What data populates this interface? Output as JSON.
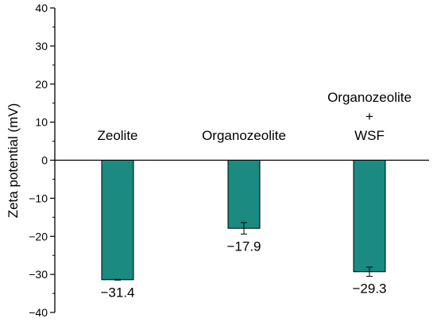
{
  "chart_data": {
    "type": "bar",
    "title": "",
    "xlabel": "",
    "ylabel": "Zeta potential (mV)",
    "ylim": [
      -40,
      40
    ],
    "yticks": [
      -40,
      -30,
      -20,
      -10,
      0,
      10,
      20,
      30,
      40
    ],
    "ytick_labels": [
      "−40",
      "−30",
      "−20",
      "−10",
      "0",
      "10",
      "20",
      "30",
      "40"
    ],
    "categories": [
      {
        "lines": [
          "Zeolite"
        ]
      },
      {
        "lines": [
          "Organozeolite"
        ]
      },
      {
        "lines": [
          "Organozeolite",
          "+",
          "WSF"
        ]
      }
    ],
    "values": [
      -31.4,
      -17.9,
      -29.3
    ],
    "errors": [
      0.1,
      1.5,
      1.2
    ],
    "value_labels": [
      "−31.4",
      "−17.9",
      "−29.3"
    ],
    "bar_color": "#1b8a80",
    "bar_edge_color": "#000000",
    "grid": false,
    "legend": "none"
  }
}
